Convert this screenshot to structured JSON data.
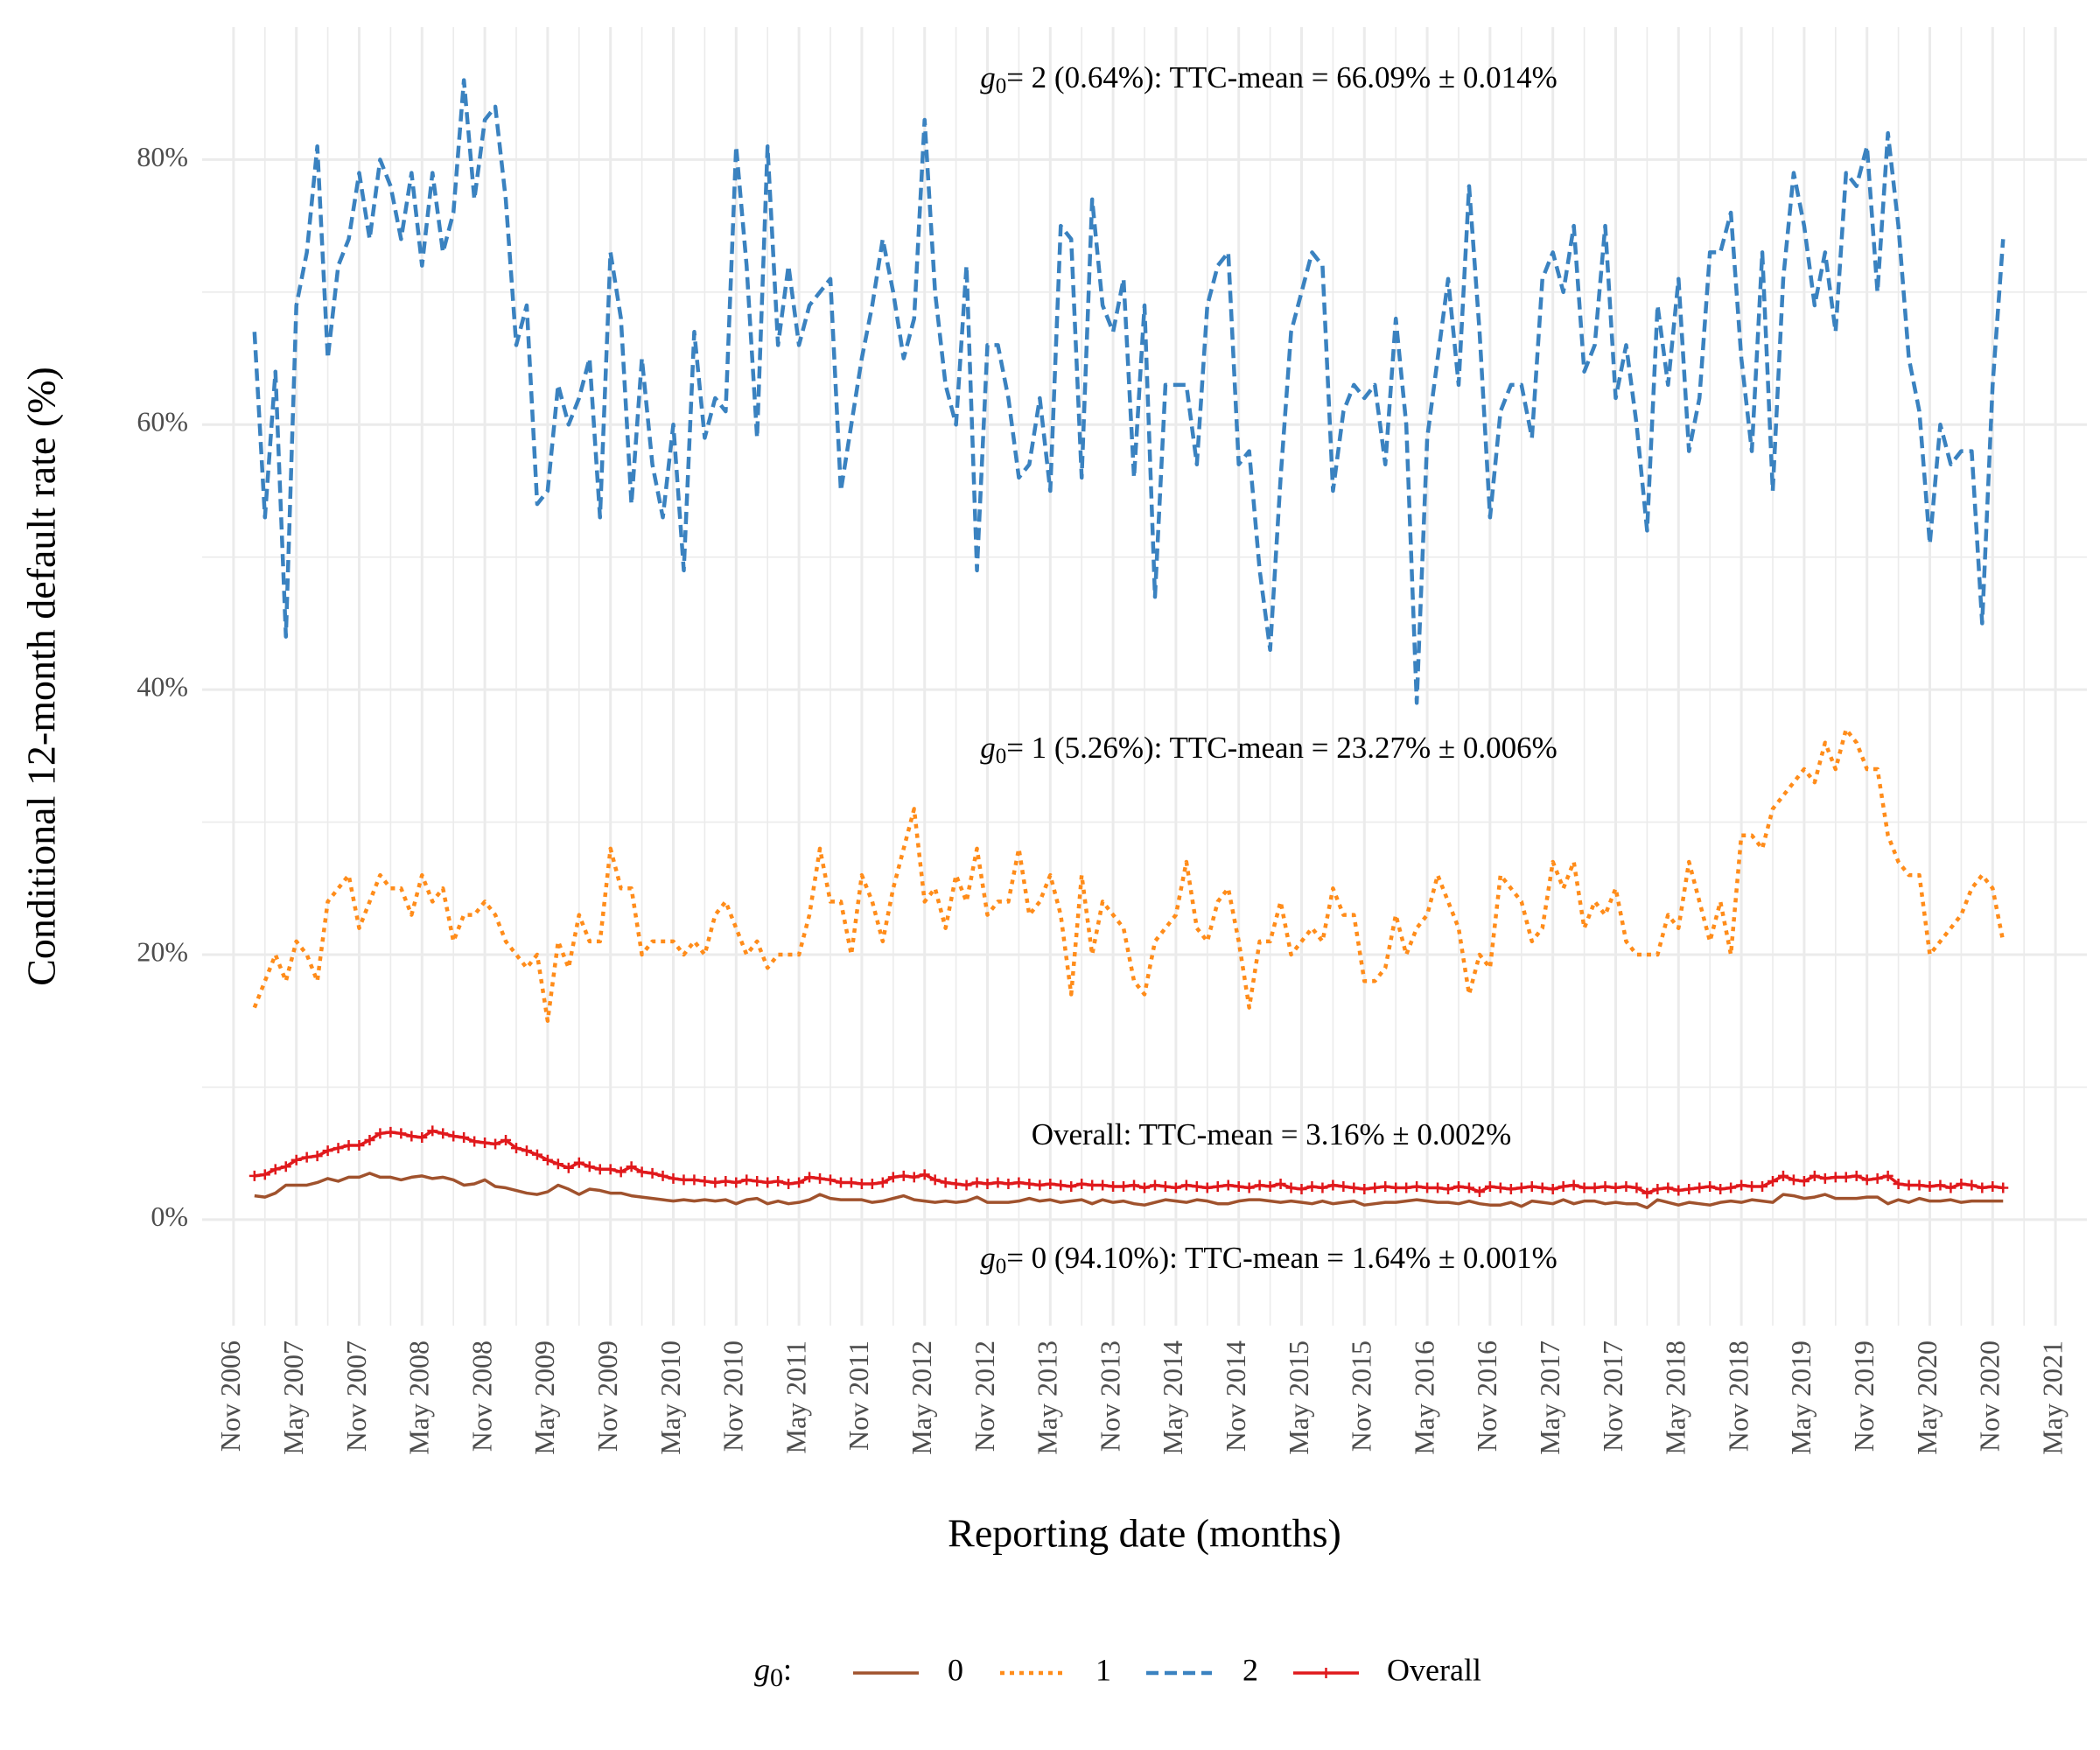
{
  "chart_data": {
    "type": "line",
    "xlabel": "Reporting date (months)",
    "ylabel": "Conditional 12-month default rate (%)",
    "legend_title": {
      "symbol": "g",
      "subscript": "0",
      "suffix": ":"
    },
    "legend_position": "bottom",
    "grid": true,
    "annotations": [
      {
        "symbol": "g",
        "subscript": "0",
        "text": "= 2 (0.64%): TTC-mean = 66.09% ± 0.014%"
      },
      {
        "symbol": "g",
        "subscript": "0",
        "text": "= 1 (5.26%): TTC-mean = 23.27% ± 0.006%"
      },
      {
        "text": "Overall: TTC-mean = 3.16% ± 0.002%"
      },
      {
        "symbol": "g",
        "subscript": "0",
        "text": "= 0 (94.10%): TTC-mean = 1.64% ± 0.001%"
      }
    ],
    "xlim": [
      "2006-08",
      "2021-08"
    ],
    "xticks": [
      {
        "value": "2006-11",
        "label": "Nov 2006"
      },
      {
        "value": "2007-05",
        "label": "May 2007"
      },
      {
        "value": "2007-11",
        "label": "Nov 2007"
      },
      {
        "value": "2008-05",
        "label": "May 2008"
      },
      {
        "value": "2008-11",
        "label": "Nov 2008"
      },
      {
        "value": "2009-05",
        "label": "May 2009"
      },
      {
        "value": "2009-11",
        "label": "Nov 2009"
      },
      {
        "value": "2010-05",
        "label": "May 2010"
      },
      {
        "value": "2010-11",
        "label": "Nov 2010"
      },
      {
        "value": "2011-05",
        "label": "May 2011"
      },
      {
        "value": "2011-11",
        "label": "Nov 2011"
      },
      {
        "value": "2012-05",
        "label": "May 2012"
      },
      {
        "value": "2012-11",
        "label": "Nov 2012"
      },
      {
        "value": "2013-05",
        "label": "May 2013"
      },
      {
        "value": "2013-11",
        "label": "Nov 2013"
      },
      {
        "value": "2014-05",
        "label": "May 2014"
      },
      {
        "value": "2014-11",
        "label": "Nov 2014"
      },
      {
        "value": "2015-05",
        "label": "May 2015"
      },
      {
        "value": "2015-11",
        "label": "Nov 2015"
      },
      {
        "value": "2016-05",
        "label": "May 2016"
      },
      {
        "value": "2016-11",
        "label": "Nov 2016"
      },
      {
        "value": "2017-05",
        "label": "May 2017"
      },
      {
        "value": "2017-11",
        "label": "Nov 2017"
      },
      {
        "value": "2018-05",
        "label": "May 2018"
      },
      {
        "value": "2018-11",
        "label": "Nov 2018"
      },
      {
        "value": "2019-05",
        "label": "May 2019"
      },
      {
        "value": "2019-11",
        "label": "Nov 2019"
      },
      {
        "value": "2020-05",
        "label": "May 2020"
      },
      {
        "value": "2020-11",
        "label": "Nov 2020"
      },
      {
        "value": "2021-05",
        "label": "May 2021"
      }
    ],
    "ylim": [
      -8,
      90
    ],
    "yticks": [
      {
        "value": 0,
        "label": "0%"
      },
      {
        "value": 20,
        "label": "20%"
      },
      {
        "value": 40,
        "label": "40%"
      },
      {
        "value": 60,
        "label": "60%"
      },
      {
        "value": 80,
        "label": "80%"
      }
    ],
    "x": [
      "2007-01",
      "2007-02",
      "2007-03",
      "2007-04",
      "2007-05",
      "2007-06",
      "2007-07",
      "2007-08",
      "2007-09",
      "2007-10",
      "2007-11",
      "2007-12",
      "2008-01",
      "2008-02",
      "2008-03",
      "2008-04",
      "2008-05",
      "2008-06",
      "2008-07",
      "2008-08",
      "2008-09",
      "2008-10",
      "2008-11",
      "2008-12",
      "2009-01",
      "2009-02",
      "2009-03",
      "2009-04",
      "2009-05",
      "2009-06",
      "2009-07",
      "2009-08",
      "2009-09",
      "2009-10",
      "2009-11",
      "2009-12",
      "2010-01",
      "2010-02",
      "2010-03",
      "2010-04",
      "2010-05",
      "2010-06",
      "2010-07",
      "2010-08",
      "2010-09",
      "2010-10",
      "2010-11",
      "2010-12",
      "2011-01",
      "2011-02",
      "2011-03",
      "2011-04",
      "2011-05",
      "2011-06",
      "2011-07",
      "2011-08",
      "2011-09",
      "2011-10",
      "2011-11",
      "2011-12",
      "2012-01",
      "2012-02",
      "2012-03",
      "2012-04",
      "2012-05",
      "2012-06",
      "2012-07",
      "2012-08",
      "2012-09",
      "2012-10",
      "2012-11",
      "2012-12",
      "2013-01",
      "2013-02",
      "2013-03",
      "2013-04",
      "2013-05",
      "2013-06",
      "2013-07",
      "2013-08",
      "2013-09",
      "2013-10",
      "2013-11",
      "2013-12",
      "2014-01",
      "2014-02",
      "2014-03",
      "2014-04",
      "2014-05",
      "2014-06",
      "2014-07",
      "2014-08",
      "2014-09",
      "2014-10",
      "2014-11",
      "2014-12",
      "2015-01",
      "2015-02",
      "2015-03",
      "2015-04",
      "2015-05",
      "2015-06",
      "2015-07",
      "2015-08",
      "2015-09",
      "2015-10",
      "2015-11",
      "2015-12",
      "2016-01",
      "2016-02",
      "2016-03",
      "2016-04",
      "2016-05",
      "2016-06",
      "2016-07",
      "2016-08",
      "2016-09",
      "2016-10",
      "2016-11",
      "2016-12",
      "2017-01",
      "2017-02",
      "2017-03",
      "2017-04",
      "2017-05",
      "2017-06",
      "2017-07",
      "2017-08",
      "2017-09",
      "2017-10",
      "2017-11",
      "2017-12",
      "2018-01",
      "2018-02",
      "2018-03",
      "2018-04",
      "2018-05",
      "2018-06",
      "2018-07",
      "2018-08",
      "2018-09",
      "2018-10",
      "2018-11",
      "2018-12",
      "2019-01",
      "2019-02",
      "2019-03",
      "2019-04",
      "2019-05",
      "2019-06",
      "2019-07",
      "2019-08",
      "2019-09",
      "2019-10",
      "2019-11",
      "2019-12",
      "2020-01",
      "2020-02",
      "2020-03",
      "2020-04",
      "2020-05",
      "2020-06",
      "2020-07",
      "2020-08",
      "2020-09",
      "2020-10",
      "2020-11",
      "2020-12"
    ],
    "series": [
      {
        "name": "0",
        "color": "#a0522d",
        "linestyle": "solid",
        "marker": "none",
        "values": [
          1.8,
          1.7,
          2.0,
          2.6,
          2.6,
          2.6,
          2.8,
          3.1,
          2.9,
          3.2,
          3.2,
          3.5,
          3.2,
          3.2,
          3.0,
          3.2,
          3.3,
          3.1,
          3.2,
          3.0,
          2.6,
          2.7,
          3.0,
          2.5,
          2.4,
          2.2,
          2.0,
          1.9,
          2.1,
          2.6,
          2.3,
          1.9,
          2.3,
          2.2,
          2.0,
          2.0,
          1.8,
          1.7,
          1.6,
          1.5,
          1.4,
          1.5,
          1.4,
          1.5,
          1.4,
          1.5,
          1.2,
          1.5,
          1.6,
          1.2,
          1.4,
          1.2,
          1.3,
          1.5,
          1.9,
          1.6,
          1.5,
          1.5,
          1.5,
          1.3,
          1.4,
          1.6,
          1.8,
          1.5,
          1.4,
          1.3,
          1.4,
          1.3,
          1.4,
          1.7,
          1.3,
          1.3,
          1.3,
          1.4,
          1.6,
          1.4,
          1.5,
          1.3,
          1.4,
          1.5,
          1.2,
          1.5,
          1.3,
          1.4,
          1.2,
          1.1,
          1.3,
          1.5,
          1.4,
          1.3,
          1.5,
          1.4,
          1.2,
          1.2,
          1.4,
          1.5,
          1.5,
          1.4,
          1.3,
          1.4,
          1.3,
          1.2,
          1.4,
          1.2,
          1.3,
          1.4,
          1.1,
          1.2,
          1.3,
          1.3,
          1.4,
          1.5,
          1.4,
          1.3,
          1.3,
          1.2,
          1.4,
          1.2,
          1.1,
          1.1,
          1.3,
          1.0,
          1.4,
          1.3,
          1.2,
          1.5,
          1.2,
          1.4,
          1.4,
          1.2,
          1.3,
          1.2,
          1.2,
          0.9,
          1.5,
          1.3,
          1.1,
          1.3,
          1.2,
          1.1,
          1.3,
          1.4,
          1.3,
          1.5,
          1.4,
          1.3,
          1.9,
          1.8,
          1.6,
          1.7,
          1.9,
          1.6,
          1.6,
          1.6,
          1.7,
          1.7,
          1.2,
          1.5,
          1.3,
          1.6,
          1.4,
          1.4,
          1.5,
          1.3,
          1.4,
          1.4,
          1.4,
          1.4
        ]
      },
      {
        "name": "1",
        "color": "#ff8c1a",
        "linestyle": "dotted",
        "marker": "none",
        "values": [
          16,
          18,
          20,
          18,
          21,
          20,
          18,
          24,
          25,
          26,
          22,
          24,
          26,
          25,
          25,
          23,
          26,
          24,
          25,
          21,
          23,
          23,
          24,
          23,
          21,
          20,
          19,
          20,
          15,
          21,
          19,
          23,
          21,
          21,
          28,
          25,
          25,
          20,
          21,
          21,
          21,
          20,
          21,
          20,
          23,
          24,
          22,
          20,
          21,
          19,
          20,
          20,
          20,
          23,
          28,
          24,
          24,
          20,
          26,
          24,
          21,
          25,
          28,
          31,
          24,
          25,
          22,
          26,
          24,
          28,
          23,
          24,
          24,
          28,
          23,
          24,
          26,
          23,
          17,
          26,
          20,
          24,
          23,
          22,
          18,
          17,
          21,
          22,
          23,
          27,
          22,
          21,
          24,
          25,
          21,
          16,
          21,
          21,
          24,
          20,
          21,
          22,
          21,
          25,
          23,
          23,
          18,
          18,
          19,
          23,
          20,
          22,
          23,
          26,
          24,
          22,
          17,
          20,
          19,
          26,
          25,
          24,
          21,
          22,
          27,
          25,
          27,
          22,
          24,
          23,
          25,
          21,
          20,
          20,
          20,
          23,
          22,
          27,
          24,
          21,
          24,
          20,
          29,
          29,
          28,
          31,
          32,
          33,
          34,
          33,
          36,
          34,
          37,
          36,
          34,
          34,
          29,
          27,
          26,
          26,
          20,
          21,
          22,
          23,
          25,
          26,
          25,
          21
        ]
      },
      {
        "name": "2",
        "color": "#3a82c0",
        "linestyle": "dashed",
        "marker": "none",
        "values": [
          67,
          53,
          64,
          44,
          69,
          73,
          81,
          65,
          72,
          74,
          79,
          74,
          80,
          78,
          74,
          79,
          72,
          79,
          73,
          76,
          86,
          77,
          83,
          84,
          77,
          66,
          69,
          54,
          55,
          63,
          60,
          62,
          65,
          53,
          73,
          68,
          54,
          65,
          57,
          53,
          60,
          49,
          67,
          59,
          62,
          61,
          81,
          72,
          59,
          81,
          66,
          72,
          66,
          69,
          70,
          71,
          55,
          60,
          65,
          69,
          74,
          70,
          65,
          68,
          83,
          70,
          63,
          60,
          72,
          49,
          66,
          66,
          62,
          56,
          57,
          62,
          55,
          75,
          74,
          56,
          77,
          69,
          67,
          71,
          56,
          69,
          47,
          63,
          63,
          63,
          57,
          69,
          72,
          73,
          57,
          58,
          49,
          43,
          56,
          67,
          70,
          73,
          72,
          55,
          61,
          63,
          62,
          63,
          57,
          68,
          60,
          39,
          59,
          65,
          71,
          63,
          78,
          67,
          53,
          61,
          63,
          63,
          59,
          71,
          73,
          70,
          75,
          64,
          66,
          75,
          62,
          66,
          60,
          52,
          69,
          63,
          71,
          58,
          62,
          73,
          73,
          76,
          65,
          58,
          73,
          55,
          71,
          79,
          75,
          69,
          73,
          67,
          79,
          78,
          81,
          70,
          82,
          75,
          65,
          61,
          51,
          60,
          57,
          58,
          58,
          45,
          63,
          74
        ]
      },
      {
        "name": "Overall",
        "color": "#e0191c",
        "linestyle": "solid",
        "marker": "plus",
        "values": [
          3.3,
          3.4,
          3.8,
          4.0,
          4.5,
          4.7,
          4.8,
          5.2,
          5.4,
          5.6,
          5.6,
          6.0,
          6.5,
          6.6,
          6.5,
          6.3,
          6.2,
          6.7,
          6.5,
          6.3,
          6.2,
          5.9,
          5.8,
          5.7,
          6.0,
          5.4,
          5.2,
          4.9,
          4.5,
          4.2,
          3.9,
          4.3,
          4.0,
          3.8,
          3.8,
          3.6,
          4.0,
          3.6,
          3.5,
          3.3,
          3.1,
          3.0,
          3.0,
          2.9,
          2.8,
          2.9,
          2.8,
          3.0,
          2.9,
          2.8,
          2.9,
          2.7,
          2.8,
          3.2,
          3.1,
          3.0,
          2.8,
          2.8,
          2.7,
          2.7,
          2.8,
          3.2,
          3.3,
          3.2,
          3.4,
          3.0,
          2.8,
          2.7,
          2.6,
          2.8,
          2.7,
          2.8,
          2.7,
          2.8,
          2.7,
          2.6,
          2.7,
          2.6,
          2.5,
          2.7,
          2.6,
          2.6,
          2.5,
          2.5,
          2.6,
          2.4,
          2.6,
          2.5,
          2.4,
          2.6,
          2.5,
          2.4,
          2.5,
          2.6,
          2.5,
          2.4,
          2.6,
          2.5,
          2.7,
          2.4,
          2.3,
          2.5,
          2.4,
          2.6,
          2.5,
          2.4,
          2.3,
          2.4,
          2.5,
          2.4,
          2.4,
          2.5,
          2.4,
          2.4,
          2.3,
          2.5,
          2.4,
          2.1,
          2.5,
          2.4,
          2.3,
          2.4,
          2.5,
          2.4,
          2.3,
          2.5,
          2.6,
          2.4,
          2.4,
          2.5,
          2.4,
          2.5,
          2.4,
          2.0,
          2.3,
          2.4,
          2.2,
          2.3,
          2.4,
          2.5,
          2.3,
          2.4,
          2.6,
          2.5,
          2.5,
          2.9,
          3.3,
          3.0,
          2.9,
          3.3,
          3.1,
          3.2,
          3.2,
          3.3,
          3.0,
          3.1,
          3.3,
          2.7,
          2.6,
          2.6,
          2.5,
          2.6,
          2.4,
          2.7,
          2.6,
          2.4,
          2.5,
          2.4
        ]
      }
    ]
  }
}
